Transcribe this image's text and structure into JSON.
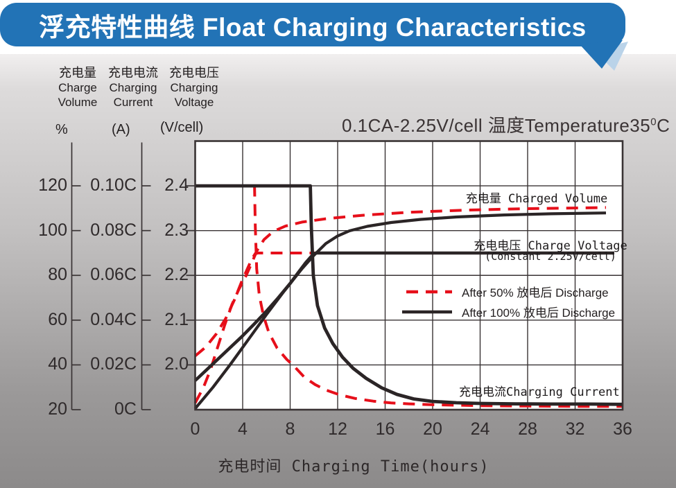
{
  "title": "浮充特性曲线 Float Charging Characteristics",
  "condition": {
    "prefix": "0.1CA-2.25V/cell  温度Temperature35",
    "sup": "0",
    "suffix": "C"
  },
  "headers": [
    {
      "cn": "充电量",
      "en1": "Charge",
      "en2": "Volume",
      "unit": "%"
    },
    {
      "cn": "充电电流",
      "en1": "Charging",
      "en2": "Current",
      "unit": "(A)"
    },
    {
      "cn": "充电电压",
      "en1": "Charging",
      "en2": "Voltage",
      "unit": "(V/cell)"
    }
  ],
  "chart_data": {
    "type": "line",
    "title": "浮充特性曲线 Float Charging Characteristics",
    "condition": "0.1CA-2.25V/cell 温度Temperature35°C",
    "grid": true,
    "x_axis": {
      "title": "充电时间 Charging Time(hours)",
      "min": 0,
      "max": 36,
      "ticks": [
        0,
        4,
        8,
        12,
        16,
        20,
        24,
        28,
        32,
        36
      ]
    },
    "y_axes": {
      "percent": {
        "name": "充电量 Charge Volume",
        "unit": "%",
        "min": 20,
        "per_division": 20,
        "tick_labels": [
          "120",
          "100",
          "80",
          "60",
          "40",
          "20"
        ]
      },
      "current": {
        "name": "充电电流 Charging Current",
        "unit": "(A)",
        "min": 0,
        "per_division": 0.02,
        "tick_labels": [
          "0.10C",
          "0.08C",
          "0.06C",
          "0.04C",
          "0.02C",
          "0C"
        ]
      },
      "voltage": {
        "name": "充电电压 Charging Voltage",
        "unit": "(V/cell)",
        "min": 1.9,
        "per_division": 0.1,
        "tick_labels": [
          "2.4",
          "2.3",
          "2.2",
          "2.1",
          "2.0"
        ]
      }
    },
    "curve_labels": {
      "charged_volume": "充电量 Charged Volume",
      "charge_voltage": "充电电压 Charge Voltage",
      "charge_voltage_note": "(Constant 2.25V/cell)",
      "charging_current": "充电电流Charging Current"
    },
    "legend": [
      {
        "label": "After 50% 放电后 Discharge",
        "style": "dashed",
        "color": "#e60f1a"
      },
      {
        "label": "After 100% 放电后 Discharge",
        "style": "solid",
        "color": "#2b2526"
      }
    ],
    "colors": {
      "red": "#e60f1a",
      "black": "#2b2526",
      "grid": "#393334",
      "plot_bg": "#ffffff",
      "titlebar": "#2273b6"
    },
    "series": [
      {
        "name": "voltage-after-50pct-discharge",
        "axis": "voltage",
        "color": "#e60f1a",
        "dash": "17 11",
        "width": 4,
        "points": [
          [
            0,
            2.02
          ],
          [
            0.9,
            2.04
          ],
          [
            1.8,
            2.07
          ],
          [
            2.6,
            2.105
          ],
          [
            3.3,
            2.145
          ],
          [
            3.9,
            2.185
          ],
          [
            4.4,
            2.215
          ],
          [
            4.8,
            2.238
          ],
          [
            5.1,
            2.25
          ],
          [
            10,
            2.25
          ],
          [
            35.3,
            2.25
          ]
        ]
      },
      {
        "name": "charged-volume-after-50pct-discharge",
        "axis": "percent",
        "color": "#e60f1a",
        "dash": "17 11",
        "width": 4,
        "points": [
          [
            0,
            23
          ],
          [
            0.7,
            30
          ],
          [
            1.3,
            38
          ],
          [
            1.9,
            48
          ],
          [
            2.5,
            58
          ],
          [
            3.1,
            67
          ],
          [
            3.7,
            74
          ],
          [
            4.3,
            80
          ],
          [
            4.8,
            86
          ],
          [
            5.2,
            91
          ],
          [
            5.8,
            96
          ],
          [
            6.6,
            99.7
          ],
          [
            7.6,
            102
          ],
          [
            9,
            103.8
          ],
          [
            11,
            105.3
          ],
          [
            14,
            106.8
          ],
          [
            18,
            108.2
          ],
          [
            23,
            109.2
          ],
          [
            28,
            109.8
          ],
          [
            34.6,
            110.3
          ]
        ]
      },
      {
        "name": "charging-current-after-50pct-discharge",
        "axis": "current",
        "color": "#e60f1a",
        "dash": "17 11",
        "width": 4,
        "points": [
          [
            0,
            0.1
          ],
          [
            5,
            0.1
          ],
          [
            5.06,
            0.082
          ],
          [
            5.18,
            0.063
          ],
          [
            5.4,
            0.051
          ],
          [
            5.75,
            0.042
          ],
          [
            6.2,
            0.0345
          ],
          [
            6.9,
            0.0275
          ],
          [
            7.7,
            0.0225
          ],
          [
            8.4,
            0.019
          ],
          [
            9.2,
            0.0145
          ],
          [
            10.1,
            0.0112
          ],
          [
            11,
            0.0088
          ],
          [
            12.2,
            0.0066
          ],
          [
            13.5,
            0.005
          ],
          [
            15,
            0.0038
          ],
          [
            16.5,
            0.003
          ],
          [
            18,
            0.0026
          ],
          [
            20,
            0.0022
          ],
          [
            24,
            0.0018
          ],
          [
            28,
            0.0016
          ],
          [
            32,
            0.0015
          ],
          [
            36,
            0.0015
          ]
        ]
      },
      {
        "name": "charged-volume-after-100pct-discharge",
        "axis": "percent",
        "color": "#2b2526",
        "dash": null,
        "width": 4.2,
        "points": [
          [
            0,
            20.5
          ],
          [
            1.5,
            30
          ],
          [
            3,
            40.5
          ],
          [
            4.5,
            51.5
          ],
          [
            6,
            62.5
          ],
          [
            7.5,
            73
          ],
          [
            9,
            83
          ],
          [
            10,
            89
          ],
          [
            11,
            94.2
          ],
          [
            12,
            97.6
          ],
          [
            13,
            99.9
          ],
          [
            14.5,
            101.9
          ],
          [
            16.5,
            103.6
          ],
          [
            19,
            105
          ],
          [
            22,
            106.1
          ],
          [
            26,
            107
          ],
          [
            30,
            107.5
          ],
          [
            34.6,
            107.9
          ]
        ]
      },
      {
        "name": "voltage-after-100pct-discharge",
        "axis": "voltage",
        "color": "#2b2526",
        "dash": null,
        "width": 4.6,
        "points": [
          [
            0,
            1.965
          ],
          [
            1,
            1.99
          ],
          [
            2,
            2.015
          ],
          [
            3,
            2.04
          ],
          [
            4,
            2.065
          ],
          [
            5,
            2.092
          ],
          [
            6,
            2.12
          ],
          [
            7,
            2.15
          ],
          [
            8,
            2.182
          ],
          [
            8.7,
            2.207
          ],
          [
            9.3,
            2.228
          ],
          [
            9.8,
            2.243
          ],
          [
            10.15,
            2.25
          ],
          [
            35.3,
            2.25
          ]
        ]
      },
      {
        "name": "charging-current-after-100pct-discharge",
        "axis": "current",
        "color": "#2b2526",
        "dash": null,
        "width": 4.8,
        "points": [
          [
            0,
            0.1
          ],
          [
            9.7,
            0.1
          ],
          [
            9.78,
            0.082
          ],
          [
            9.95,
            0.06
          ],
          [
            10.3,
            0.0465
          ],
          [
            10.9,
            0.0365
          ],
          [
            11.6,
            0.0295
          ],
          [
            12.4,
            0.0235
          ],
          [
            13.3,
            0.0185
          ],
          [
            14.4,
            0.014
          ],
          [
            15.7,
            0.0098
          ],
          [
            17,
            0.0068
          ],
          [
            18.4,
            0.0048
          ],
          [
            20,
            0.0037
          ],
          [
            22,
            0.0031
          ],
          [
            24,
            0.0028
          ],
          [
            27,
            0.0026
          ],
          [
            30,
            0.0025
          ],
          [
            33,
            0.0025
          ],
          [
            36,
            0.0024
          ]
        ]
      }
    ]
  }
}
